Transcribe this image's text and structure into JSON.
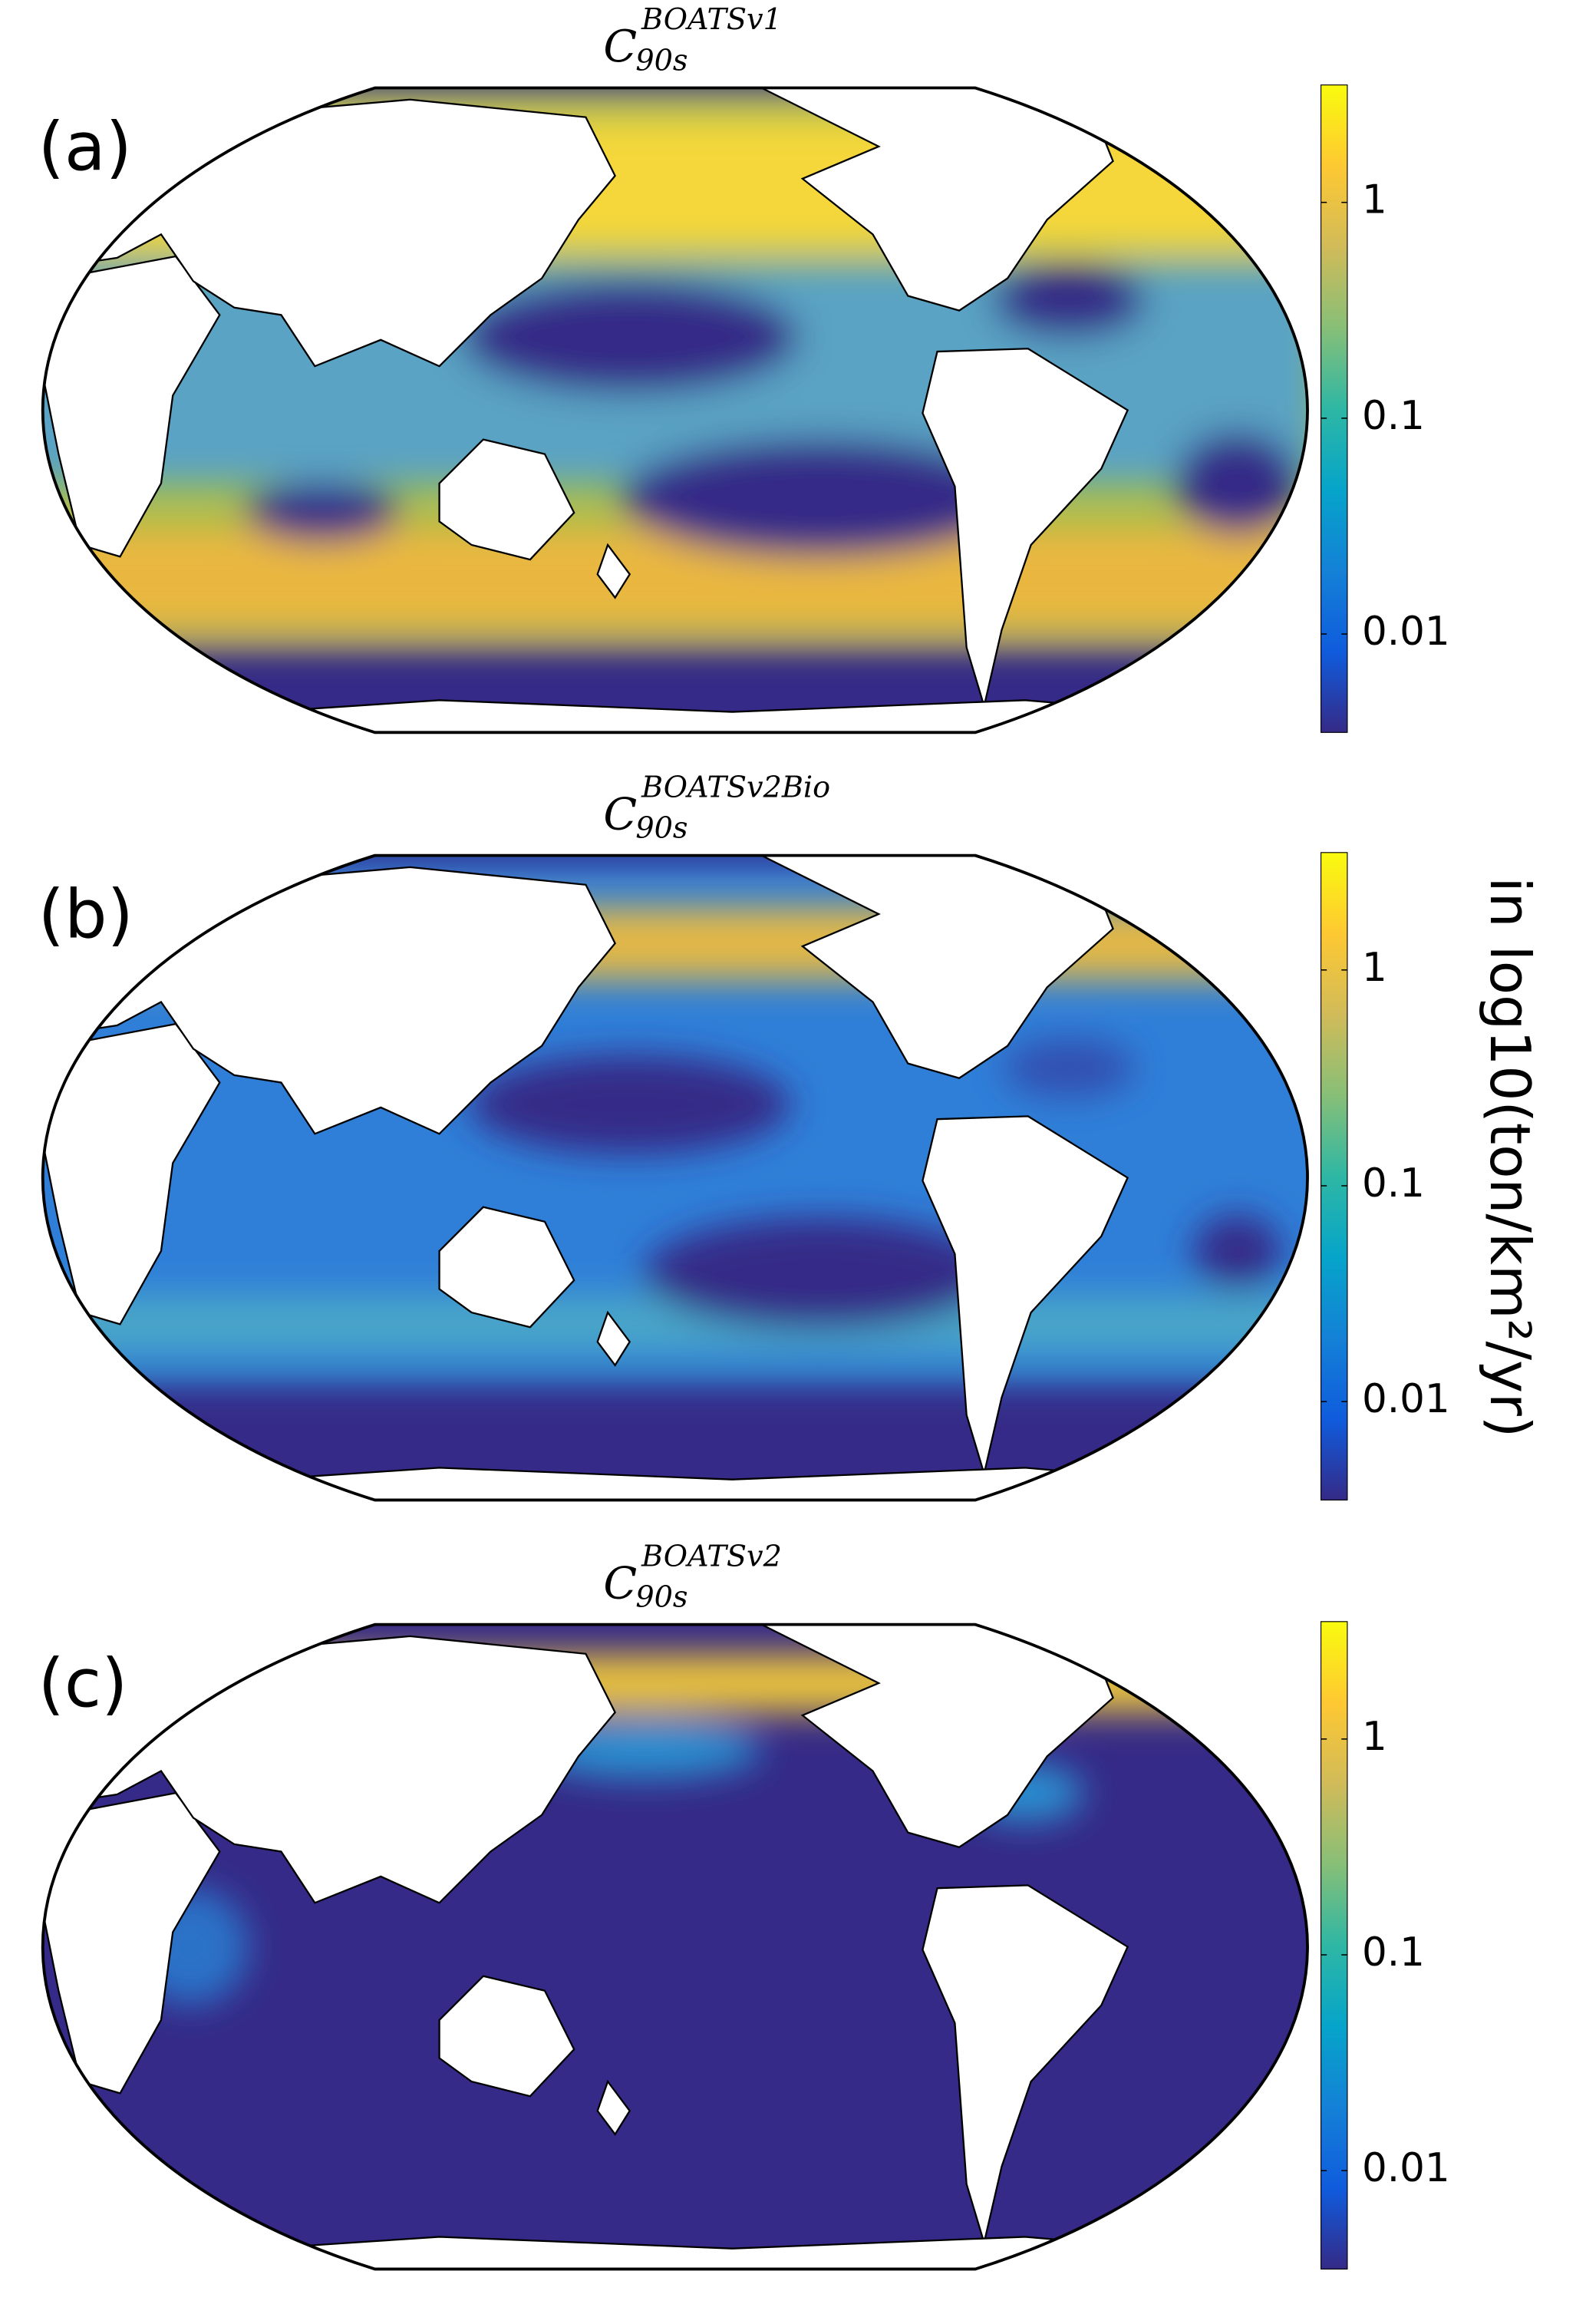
{
  "chart_data": [
    {
      "type": "map",
      "panel_label": "(a)",
      "title": {
        "base": "C",
        "superscript": "BOATSv1",
        "subscript": "90s"
      },
      "colorbar": {
        "scale": "log",
        "lim": [
          0.0035,
          3.5
        ],
        "ticks": [
          0.01,
          0.1,
          1
        ],
        "colormap": [
          "#352a87",
          "#0f5cdd",
          "#1481d6",
          "#06a4ca",
          "#2eb7a4",
          "#87bf77",
          "#d1bb59",
          "#fec832",
          "#f9fb0e"
        ]
      }
    },
    {
      "type": "map",
      "panel_label": "(b)",
      "title": {
        "base": "C",
        "superscript": "BOATSv2Bio",
        "subscript": "90s"
      },
      "colorbar": {
        "scale": "log",
        "lim": [
          0.0035,
          3.5
        ],
        "ticks": [
          0.01,
          0.1,
          1
        ],
        "colormap": [
          "#352a87",
          "#0f5cdd",
          "#1481d6",
          "#06a4ca",
          "#2eb7a4",
          "#87bf77",
          "#d1bb59",
          "#fec832",
          "#f9fb0e"
        ]
      }
    },
    {
      "type": "map",
      "panel_label": "(c)",
      "title": {
        "base": "C",
        "superscript": "BOATSv2",
        "subscript": "90s"
      },
      "colorbar": {
        "scale": "log",
        "lim": [
          0.0035,
          3.5
        ],
        "ticks": [
          0.01,
          0.1,
          1
        ],
        "colormap": [
          "#352a87",
          "#0f5cdd",
          "#1481d6",
          "#06a4ca",
          "#2eb7a4",
          "#87bf77",
          "#d1bb59",
          "#fec832",
          "#f9fb0e"
        ]
      }
    }
  ],
  "colorbar_label": "in log10(ton/km²/yr)"
}
